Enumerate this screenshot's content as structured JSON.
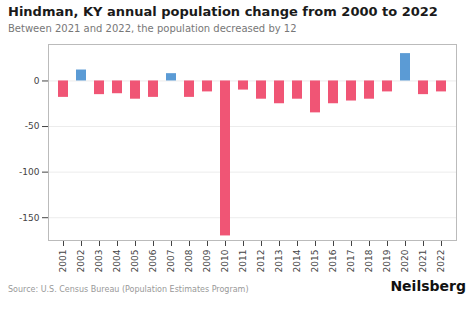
{
  "chart_data": {
    "type": "bar",
    "title": "Hindman, KY annual population change from 2000 to 2022",
    "subtitle": "Between 2021 and 2022, the population decreased by 12",
    "source": "Source: U.S. Census Bureau (Population Estimates Program)",
    "brand": "Neilsberg",
    "categories": [
      "2001",
      "2002",
      "2003",
      "2004",
      "2005",
      "2006",
      "2007",
      "2008",
      "2009",
      "2010",
      "2011",
      "2012",
      "2013",
      "2014",
      "2015",
      "2016",
      "2017",
      "2018",
      "2019",
      "2020",
      "2021",
      "2022"
    ],
    "values": [
      -18,
      12,
      -15,
      -14,
      -20,
      -18,
      8,
      -18,
      -12,
      -170,
      -10,
      -20,
      -25,
      -20,
      -35,
      -25,
      -22,
      -20,
      -12,
      30,
      -15,
      -12
    ],
    "colors": [
      "#f05575",
      "#5b9bd5",
      "#f05575",
      "#f05575",
      "#f05575",
      "#f05575",
      "#5b9bd5",
      "#f05575",
      "#f05575",
      "#f05575",
      "#f05575",
      "#f05575",
      "#f05575",
      "#f05575",
      "#f05575",
      "#f05575",
      "#f05575",
      "#f05575",
      "#f05575",
      "#5b9bd5",
      "#f05575",
      "#f05575"
    ],
    "ylim": [
      -175,
      40
    ],
    "yticks": [
      0,
      -50,
      -100,
      -150
    ],
    "grid": true
  }
}
